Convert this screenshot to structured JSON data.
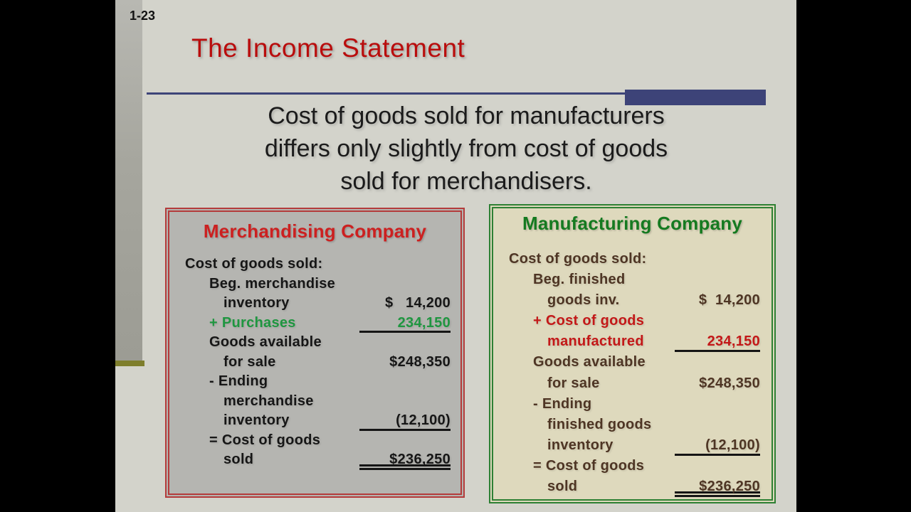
{
  "slide_number": "1-23",
  "title": "The Income Statement",
  "subtitle_lines": [
    "Cost of goods sold for manufacturers",
    "differs only slightly from cost of goods",
    "sold for merchandisers."
  ],
  "colors": {
    "title_red": "#b90d0d",
    "accent_navy": "#3d4378",
    "olive_bar": "#7e7e2c",
    "slide_background": "#d3d3cb",
    "merch_border_red": "#b43b3b",
    "merch_background_gray": "#b5b5b1",
    "merch_title_red": "#cc2020",
    "mfg_border_green": "#2e8034",
    "mfg_background_cream": "#ded9bd",
    "mfg_title_green": "#157a20",
    "green_text": "#1f9640",
    "red_text": "#c31818",
    "brown_text": "#4e3524"
  },
  "merchandising_box": {
    "title": "Merchandising Company",
    "rows": [
      {
        "label": "Cost of goods sold:",
        "value": "",
        "indent": 0,
        "color": "black",
        "rule": "none"
      },
      {
        "label": "Beg. merchandise",
        "value": "",
        "indent": 1,
        "color": "black",
        "rule": "none"
      },
      {
        "label": "inventory",
        "value": "$   14,200",
        "indent": 2,
        "color": "black",
        "rule": "none"
      },
      {
        "label": "+ Purchases",
        "value": "234,150",
        "indent": 1,
        "color": "green",
        "rule": "single"
      },
      {
        "label": "Goods available",
        "value": "",
        "indent": 1,
        "color": "black",
        "rule": "none"
      },
      {
        "label": "for sale",
        "value": "$248,350",
        "indent": 2,
        "color": "black",
        "rule": "none"
      },
      {
        "label": "- Ending",
        "value": "",
        "indent": 1,
        "color": "black",
        "rule": "none"
      },
      {
        "label": "merchandise",
        "value": "",
        "indent": 2,
        "color": "black",
        "rule": "none"
      },
      {
        "label": "inventory",
        "value": "(12,100)",
        "indent": 2,
        "color": "black",
        "rule": "single"
      },
      {
        "label": "= Cost of goods",
        "value": "",
        "indent": 1,
        "color": "black",
        "rule": "none"
      },
      {
        "label": "sold",
        "value": "$236,250",
        "indent": 2,
        "color": "black",
        "rule": "double"
      }
    ]
  },
  "manufacturing_box": {
    "title": "Manufacturing Company",
    "rows": [
      {
        "label": "Cost of goods sold:",
        "value": "",
        "indent": 0,
        "color": "brown",
        "rule": "none"
      },
      {
        "label": "Beg. finished",
        "value": "",
        "indent": 1,
        "color": "brown",
        "rule": "none"
      },
      {
        "label": "goods inv.",
        "value": "$  14,200",
        "indent": 2,
        "color": "brown",
        "rule": "none"
      },
      {
        "label": "+ Cost of goods",
        "value": "",
        "indent": 1,
        "color": "red",
        "rule": "none"
      },
      {
        "label": "manufactured",
        "value": "234,150",
        "indent": 2,
        "color": "red",
        "rule": "single"
      },
      {
        "label": "Goods available",
        "value": "",
        "indent": 1,
        "color": "brown",
        "rule": "none"
      },
      {
        "label": "for sale",
        "value": "$248,350",
        "indent": 2,
        "color": "brown",
        "rule": "none"
      },
      {
        "label": "- Ending",
        "value": "",
        "indent": 1,
        "color": "brown",
        "rule": "none"
      },
      {
        "label": "finished goods",
        "value": "",
        "indent": 2,
        "color": "brown",
        "rule": "none"
      },
      {
        "label": "inventory",
        "value": "(12,100)",
        "indent": 2,
        "color": "brown",
        "rule": "single"
      },
      {
        "label": "= Cost of goods",
        "value": "",
        "indent": 1,
        "color": "brown",
        "rule": "none"
      },
      {
        "label": "sold",
        "value": "$236,250",
        "indent": 2,
        "color": "brown",
        "rule": "double"
      }
    ]
  }
}
